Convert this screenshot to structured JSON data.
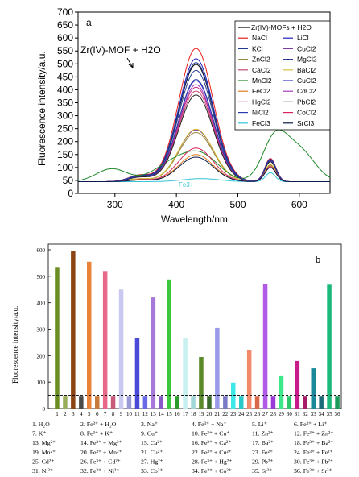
{
  "chart_data": [
    {
      "panel": "a",
      "type": "line",
      "xlabel": "Wavelength/nm",
      "ylabel": "Fluorescence intensity/a.u.",
      "xlim": [
        240,
        650
      ],
      "ylim": [
        0,
        700
      ],
      "x_ticks": [
        300,
        400,
        500,
        600
      ],
      "y_ticks": [
        0,
        50,
        100,
        150,
        200,
        250,
        300,
        350,
        400,
        450,
        500,
        550,
        600,
        650,
        700
      ],
      "annotation_main": "Zr(IV)-MOF + H2O",
      "annotation_fe": "Fe3+",
      "legend_placement": "top-right",
      "series": [
        {
          "name": "Zr(IV)-MOFs + H2O",
          "color": "#000000",
          "peak1": 498,
          "peak2": 130
        },
        {
          "name": "NaCl",
          "color": "#e8201c",
          "peak1": 560,
          "peak2": 135
        },
        {
          "name": "LiCl",
          "color": "#1f1fb8",
          "peak1": 520,
          "peak2": 132
        },
        {
          "name": "KCl",
          "color": "#203a8f",
          "peak1": 505,
          "peak2": 131
        },
        {
          "name": "CuCl2",
          "color": "#7a3c9a",
          "peak1": 245,
          "peak2": 110
        },
        {
          "name": "ZnCl2",
          "color": "#9a8b3a",
          "peak1": 235,
          "peak2": 108
        },
        {
          "name": "MgCl2",
          "color": "#2a3c8e",
          "peak1": 475,
          "peak2": 128
        },
        {
          "name": "CaCl2",
          "color": "#c8486f",
          "peak1": 395,
          "peak2": 125
        },
        {
          "name": "BaCl2",
          "color": "#d9c23a",
          "peak1": 248,
          "peak2": 112
        },
        {
          "name": "MnCl2",
          "color": "#1f8a2a",
          "peak1": 205,
          "peak2": 205
        },
        {
          "name": "CuCl2",
          "color": "#3939c9",
          "peak1": 435,
          "peak2": 126
        },
        {
          "name": "FeCl2",
          "color": "#e07a1a",
          "peak1": 150,
          "peak2": 100
        },
        {
          "name": "CdCl2",
          "color": "#a03cb4",
          "peak1": 420,
          "peak2": 125
        },
        {
          "name": "HgCl2",
          "color": "#c42b8e",
          "peak1": 410,
          "peak2": 124
        },
        {
          "name": "PbCl2",
          "color": "#222222",
          "peak1": 380,
          "peak2": 122
        },
        {
          "name": "NiCl2",
          "color": "#2b3aa8",
          "peak1": 440,
          "peak2": 127
        },
        {
          "name": "CoCl2",
          "color": "#d8245a",
          "peak1": 175,
          "peak2": 104
        },
        {
          "name": "FeCl3",
          "color": "#33c4d6",
          "peak1": 50,
          "peak2": 80
        },
        {
          "name": "SrCl3",
          "color": "#0a1a4a",
          "peak1": 140,
          "peak2": 100
        }
      ]
    },
    {
      "panel": "b",
      "type": "bar",
      "ylabel": "Fluorescence intensity/a.u.",
      "ylim": [
        0,
        600
      ],
      "y_ticks": [
        0,
        100,
        200,
        300,
        400,
        500,
        600
      ],
      "threshold": 50,
      "categories": [
        "1",
        "2",
        "3",
        "4",
        "5",
        "6",
        "7",
        "8",
        "9",
        "10",
        "11",
        "12",
        "13",
        "14",
        "15",
        "16",
        "17",
        "18",
        "19",
        "20",
        "21",
        "22",
        "23",
        "24",
        "25",
        "26",
        "27",
        "28",
        "29",
        "30",
        "31",
        "32",
        "33",
        "34",
        "35",
        "36"
      ],
      "values": [
        535,
        45,
        597,
        45,
        555,
        45,
        520,
        45,
        450,
        45,
        265,
        45,
        420,
        45,
        488,
        45,
        265,
        45,
        195,
        45,
        305,
        45,
        98,
        45,
        222,
        45,
        472,
        45,
        122,
        45,
        180,
        45,
        152,
        45,
        468,
        45
      ],
      "colors": [
        "#6b8e23",
        "#9aae5a",
        "#8b4513",
        "#4a4a4a",
        "#e8833a",
        "#c87a3a",
        "#e8688a",
        "#c85a7a",
        "#c8c8f0",
        "#9a9ad8",
        "#4a4ad8",
        "#6a6ae8",
        "#a878d8",
        "#8a58c8",
        "#3cc83c",
        "#2a9a2a",
        "#c8f0f0",
        "#a0d8d8",
        "#5a8a2a",
        "#3a6a2a",
        "#9a9ae8",
        "#7a7ac8",
        "#3ce8e8",
        "#2ac8c8",
        "#f08a6a",
        "#d86a4a",
        "#b05ae8",
        "#9a3ad8",
        "#3ce88a",
        "#2ac86a",
        "#c81a8a",
        "#a81a6a",
        "#1a8a9a",
        "#1a6a7a",
        "#1ab87a",
        "#1a9a5a"
      ]
    }
  ],
  "legend_b": [
    [
      "1. H₂O",
      "2. Fe³⁺ + H₂O",
      "3. Na⁺",
      "4. Fe³⁺ + Na⁺",
      "5. Li⁺",
      "6. Fe³⁺ + Li⁺"
    ],
    [
      "7. K⁺",
      "8. Fe³⁺ + K⁺",
      "9. Cu⁺",
      "10. Fe³⁺ + Cu⁺",
      "11. Zn²⁺",
      "12. Fe³⁺ + Zn²⁺"
    ],
    [
      "13. Mg²⁺",
      "14. Fe³⁺ + Mg²⁺",
      "15. Ca²⁺",
      "16. Fe³⁺ + Ca²⁺",
      "17. Ba²⁺",
      "18. Fe³⁺ + Ba²⁺"
    ],
    [
      "19. Mn²⁺",
      "20. Fe³⁺ + Mn²⁺",
      "21. Cu²⁺",
      "22. Fe³⁺ + Cu²⁺",
      "23. Fe²⁺",
      "24. Fe³⁺ + Fe²⁺"
    ],
    [
      "25. Cd²⁺",
      "26. Fe³⁺ + Cd²⁺",
      "27. Hg²⁺",
      "28. Fe³⁺ + Hg²⁺",
      "29. Pb²⁺",
      "30. Fe³⁺ + Pb²⁺"
    ],
    [
      "31. Ni²⁺",
      "32. Fe³⁺ + Ni²⁺",
      "33. Co²⁺",
      "34. Fe³⁺ + Co²⁺",
      "35. Sr³⁺",
      "36. Fe³⁺ + Sr³⁺"
    ]
  ]
}
